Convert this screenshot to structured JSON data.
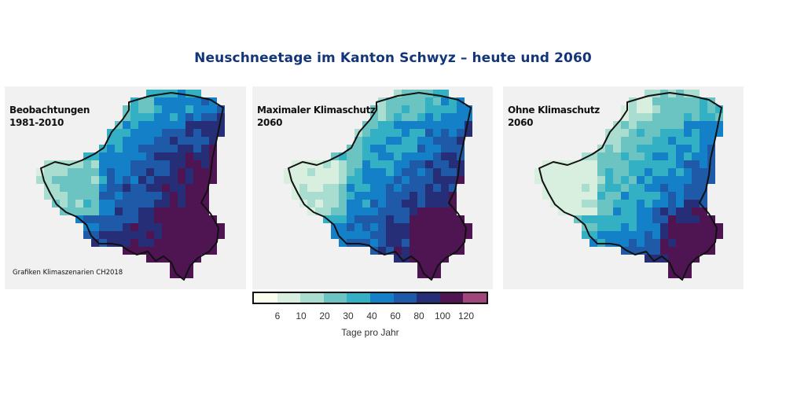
{
  "title": "Neuschneetage im Kanton Schwyz – heute und 2060",
  "panels": [
    {
      "label_line1": "Beobachtungen",
      "label_line2": "1981-2010",
      "credit": "Grafiken Klimaszenarien CH2018",
      "offset": 0,
      "deep_sw": true
    },
    {
      "label_line1": "Maximaler Klimaschutz",
      "label_line2": "2060",
      "credit": "",
      "offset": 1,
      "deep_sw": true
    },
    {
      "label_line1": "Ohne Klimaschutz",
      "label_line2": "2060",
      "credit": "",
      "offset": 2,
      "deep_sw": false
    }
  ],
  "legend": {
    "colors": [
      "#fbfdef",
      "#d8efdf",
      "#a8ddd0",
      "#6cc4c2",
      "#34b0c4",
      "#1480c8",
      "#1e5aa8",
      "#262e78",
      "#4e1552",
      "#a0467a"
    ],
    "ticks": [
      "6",
      "10",
      "20",
      "30",
      "40",
      "60",
      "80",
      "100",
      "120"
    ],
    "title": "Tage pro Jahr"
  }
}
